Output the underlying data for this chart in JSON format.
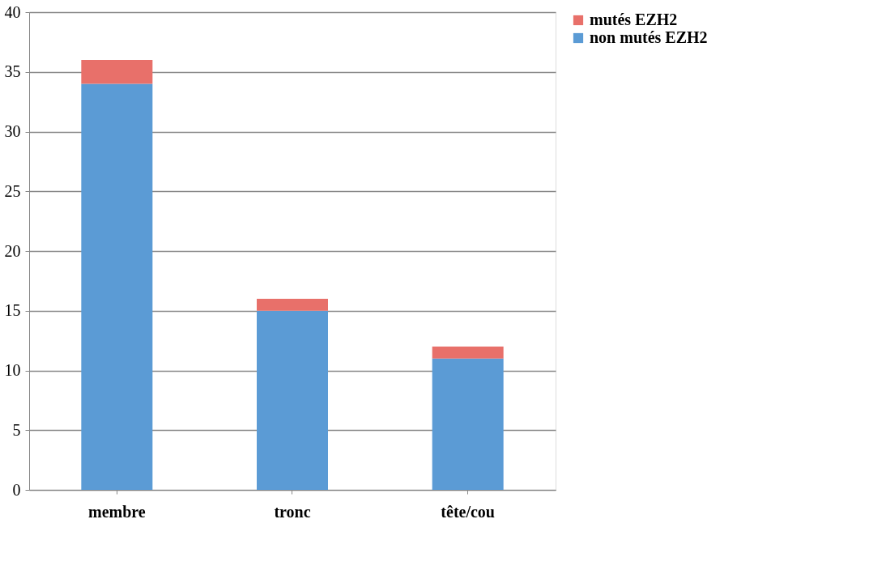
{
  "chart_data": {
    "type": "bar",
    "stacked": true,
    "categories": [
      "membre",
      "tronc",
      "tête/cou"
    ],
    "series": [
      {
        "name": "non mutés EZH2",
        "color": "#5b9bd5",
        "values": [
          34,
          15,
          11
        ]
      },
      {
        "name": "mutés EZH2",
        "color": "#e8706a",
        "values": [
          2,
          1,
          1
        ]
      }
    ],
    "ylim": [
      0,
      40
    ],
    "yticks": [
      0,
      5,
      10,
      15,
      20,
      25,
      30,
      35,
      40
    ],
    "grid": "y",
    "legend": "right"
  }
}
